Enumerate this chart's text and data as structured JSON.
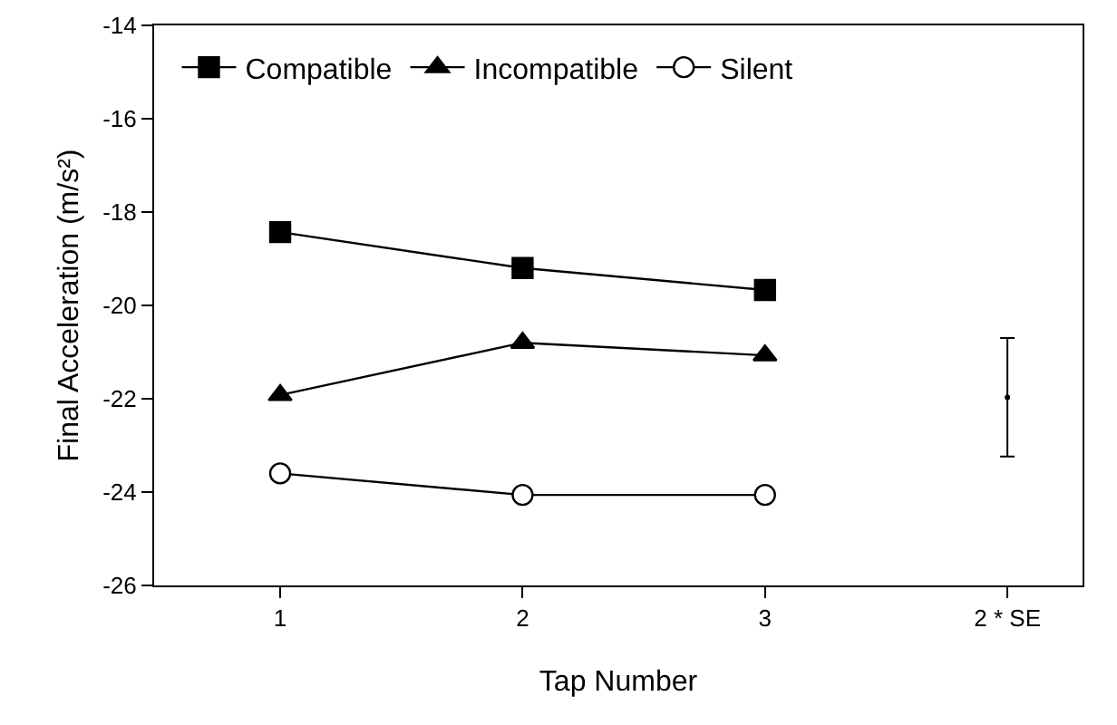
{
  "chart_data": {
    "type": "line",
    "xlabel": "Tap Number",
    "ylabel": "Final Acceleration (m/s²)",
    "categories": [
      "1",
      "2",
      "3",
      "2 * SE"
    ],
    "series": [
      {
        "name": "Compatible",
        "color": "#000000",
        "marker": "square",
        "values": [
          -18.43,
          -19.2,
          -19.67,
          null
        ]
      },
      {
        "name": "Incompatible",
        "color": "#000000",
        "marker": "triangle",
        "values": [
          -21.92,
          -20.8,
          -21.07,
          null
        ]
      },
      {
        "name": "Silent",
        "color": "#000000",
        "marker": "circle",
        "values": [
          -23.6,
          -24.06,
          -24.06,
          null
        ]
      },
      {
        "color": "#000000",
        "marker": "none",
        "values": [
          null,
          null,
          null,
          -21.97
        ],
        "errors": [
          null,
          null,
          null,
          1.27
        ]
      }
    ],
    "ylim": [
      -26,
      -14
    ],
    "yticks": [
      -26,
      -24,
      -22,
      -20,
      -18,
      -16,
      -14
    ],
    "grid": false,
    "legend": "top left",
    "line_style": "solid"
  }
}
